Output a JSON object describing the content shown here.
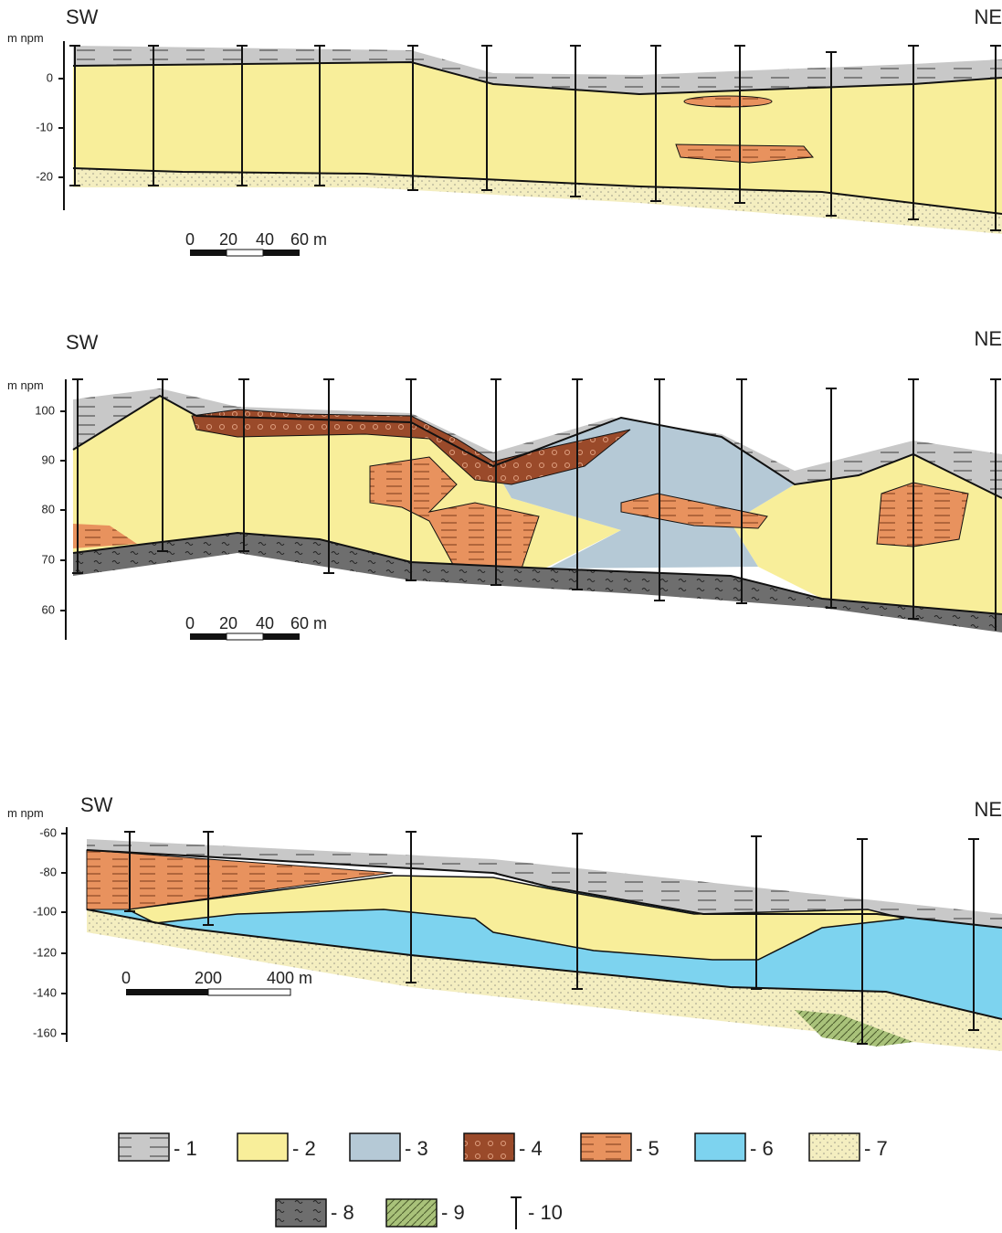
{
  "sections": [
    {
      "left": "SW",
      "right": "NE",
      "unit": "m npm",
      "yticks": [
        "0",
        "-10",
        "-20"
      ],
      "scale": [
        "0",
        "20",
        "40",
        "60 m"
      ]
    },
    {
      "left": "SW",
      "right": "NE",
      "unit": "m npm",
      "yticks": [
        "100",
        "90",
        "80",
        "70",
        "60"
      ],
      "scale": [
        "0",
        "20",
        "40",
        "60 m"
      ]
    },
    {
      "left": "SW",
      "right": "NE",
      "unit": "m npm",
      "yticks": [
        "-60",
        "-80",
        "-100",
        "-120",
        "-140",
        "-160"
      ],
      "scale": [
        "0",
        "200",
        "400 m"
      ]
    }
  ],
  "legend": [
    {
      "label": "- 1"
    },
    {
      "label": "- 2"
    },
    {
      "label": "- 3"
    },
    {
      "label": "- 4"
    },
    {
      "label": "- 5"
    },
    {
      "label": "- 6"
    },
    {
      "label": "- 7"
    },
    {
      "label": "- 8"
    },
    {
      "label": "- 9"
    },
    {
      "label": "- 10"
    }
  ]
}
